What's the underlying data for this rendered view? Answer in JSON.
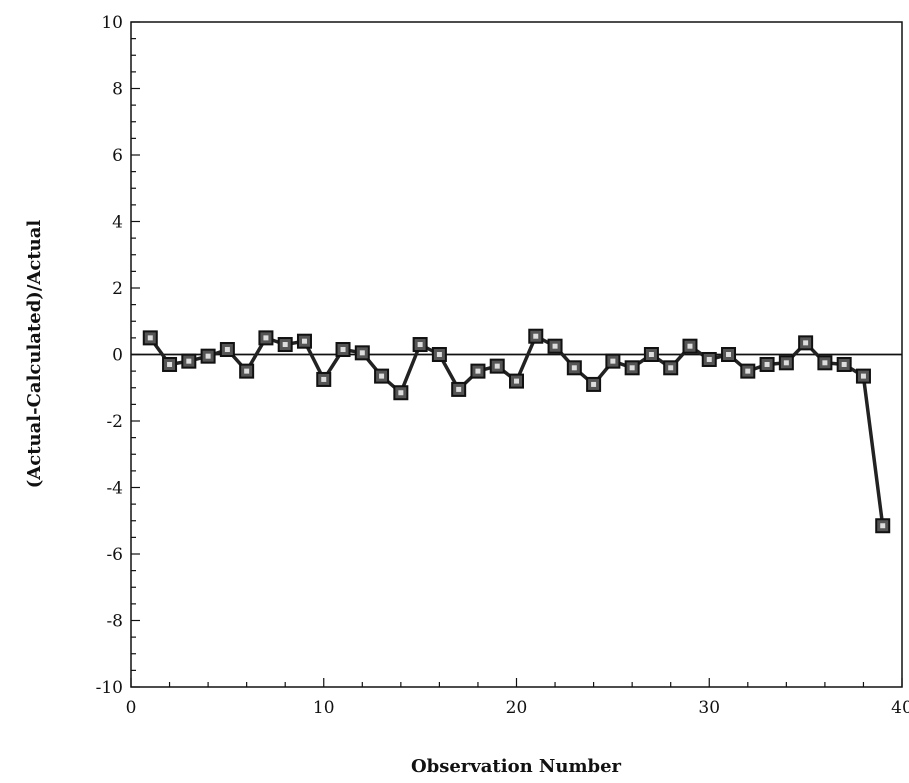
{
  "chart_data": {
    "type": "line",
    "title": "",
    "xlabel": "Observation Number",
    "ylabel": "(Actual-Calculated)/Actual",
    "xlim": [
      0,
      40
    ],
    "ylim": [
      -10,
      10
    ],
    "x_ticks": [
      0,
      10,
      20,
      30,
      40
    ],
    "y_ticks": [
      10,
      8,
      6,
      4,
      2,
      0,
      -2,
      -4,
      -6,
      -8,
      -10
    ],
    "grid": false,
    "legend": "none",
    "reference_line_y": 0,
    "marker": "square",
    "line_color": "#222222",
    "series": [
      {
        "x": [
          1,
          2,
          3,
          4,
          5,
          6,
          7,
          8,
          9,
          10,
          11,
          12,
          13,
          14,
          15,
          16,
          17,
          18,
          19,
          20,
          21,
          22,
          23,
          24,
          25,
          26,
          27,
          28,
          29,
          30,
          31,
          32,
          33,
          34,
          35,
          36,
          37,
          38,
          39
        ],
        "values": [
          0.5,
          -0.3,
          -0.2,
          -0.05,
          0.15,
          -0.5,
          0.5,
          0.3,
          0.4,
          -0.75,
          0.15,
          0.05,
          -0.65,
          -1.15,
          0.3,
          0.0,
          -1.05,
          -0.5,
          -0.35,
          -0.8,
          0.55,
          0.25,
          -0.4,
          -0.9,
          -0.2,
          -0.4,
          0.0,
          -0.4,
          0.25,
          -0.15,
          0.0,
          -0.5,
          -0.3,
          -0.25,
          0.35,
          -0.25,
          -0.3,
          -0.65,
          -5.15
        ]
      }
    ]
  }
}
